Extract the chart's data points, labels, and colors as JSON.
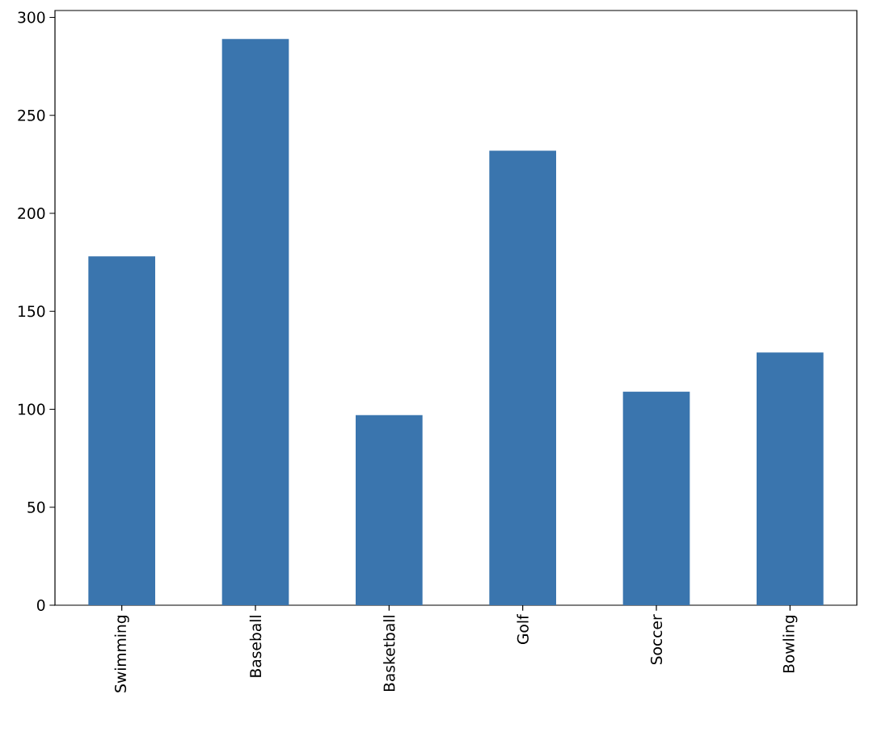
{
  "chart_data": {
    "type": "bar",
    "categories": [
      "Swimming",
      "Baseball",
      "Basketball",
      "Golf",
      "Soccer",
      "Bowling"
    ],
    "values": [
      178,
      289,
      97,
      232,
      109,
      129
    ],
    "color": "#3a75ae",
    "ylim": [
      0,
      303.5
    ],
    "yticks": [
      0,
      50,
      100,
      150,
      200,
      250,
      300
    ]
  }
}
